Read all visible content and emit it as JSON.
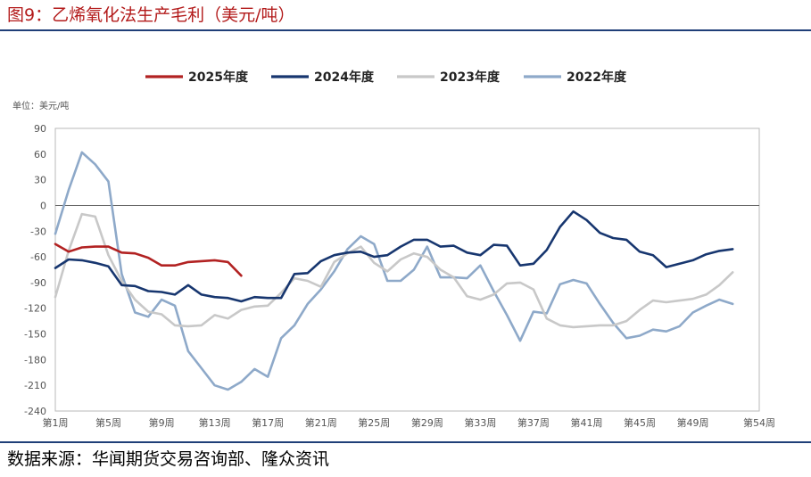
{
  "figure": {
    "title": "图9：乙烯氧化法生产毛利（美元/吨）",
    "source": "数据来源：华闻期货交易咨询部、隆众资讯"
  },
  "chart_data": {
    "type": "line",
    "unit_label": "单位：美元/吨",
    "ylim": [
      -240,
      90
    ],
    "y_ticks": [
      90,
      60,
      30,
      0,
      -30,
      -60,
      -90,
      -120,
      -150,
      -180,
      -210,
      -240
    ],
    "xlim": [
      1,
      54
    ],
    "x_ticks": [
      1,
      5,
      9,
      13,
      17,
      21,
      25,
      29,
      33,
      37,
      41,
      45,
      49,
      54
    ],
    "x_tick_labels": [
      "第1周",
      "第5周",
      "第9周",
      "第13周",
      "第17周",
      "第21周",
      "第25周",
      "第29周",
      "第33周",
      "第37周",
      "第41周",
      "第45周",
      "第49周",
      "第54周"
    ],
    "grid": false,
    "legend_position": "top",
    "series": [
      {
        "name": "2025年度",
        "color": "#b22222",
        "x": [
          1,
          2,
          3,
          4,
          5,
          6,
          7,
          8,
          9,
          10,
          11,
          12,
          13,
          14,
          15
        ],
        "y": [
          -45,
          -54,
          -49,
          -48,
          -48,
          -55,
          -56,
          -61,
          -70,
          -70,
          -66,
          -65,
          -64,
          -66,
          -82
        ]
      },
      {
        "name": "2024年度",
        "color": "#17366f",
        "x": [
          1,
          2,
          3,
          4,
          5,
          6,
          7,
          8,
          9,
          10,
          11,
          12,
          13,
          14,
          15,
          16,
          17,
          18,
          19,
          20,
          21,
          22,
          23,
          24,
          25,
          26,
          27,
          28,
          29,
          30,
          31,
          32,
          33,
          34,
          35,
          36,
          37,
          38,
          39,
          40,
          41,
          42,
          43,
          44,
          45,
          46,
          47,
          48,
          49,
          50,
          51,
          52
        ],
        "y": [
          -73,
          -63,
          -64,
          -67,
          -71,
          -93,
          -94,
          -100,
          -101,
          -104,
          -93,
          -104,
          -107,
          -108,
          -112,
          -107,
          -108,
          -108,
          -80,
          -79,
          -65,
          -58,
          -55,
          -54,
          -60,
          -58,
          -48,
          -40,
          -40,
          -48,
          -47,
          -55,
          -58,
          -46,
          -47,
          -70,
          -68,
          -52,
          -25,
          -7,
          -17,
          -32,
          -38,
          -40,
          -54,
          -58,
          -72,
          -68,
          -64,
          -57,
          -53,
          -51
        ]
      },
      {
        "name": "2023年度",
        "color": "#c8c8c8",
        "x": [
          1,
          2,
          3,
          4,
          5,
          6,
          7,
          8,
          9,
          10,
          11,
          12,
          13,
          14,
          15,
          16,
          17,
          18,
          19,
          20,
          21,
          22,
          23,
          24,
          25,
          26,
          27,
          28,
          29,
          30,
          31,
          32,
          33,
          34,
          35,
          36,
          37,
          38,
          39,
          40,
          41,
          42,
          43,
          44,
          45,
          46,
          47,
          48,
          49,
          50,
          51,
          52
        ],
        "y": [
          -107,
          -53,
          -10,
          -13,
          -58,
          -88,
          -110,
          -124,
          -127,
          -140,
          -141,
          -140,
          -128,
          -132,
          -122,
          -118,
          -117,
          -102,
          -85,
          -88,
          -95,
          -66,
          -56,
          -48,
          -67,
          -77,
          -63,
          -56,
          -60,
          -75,
          -84,
          -106,
          -110,
          -104,
          -91,
          -90,
          -98,
          -132,
          -140,
          -142,
          -141,
          -140,
          -140,
          -135,
          -122,
          -111,
          -113,
          -111,
          -109,
          -104,
          -93,
          -78
        ]
      },
      {
        "name": "2022年度",
        "color": "#8ea9c9",
        "x": [
          1,
          2,
          3,
          4,
          5,
          6,
          7,
          8,
          9,
          10,
          11,
          12,
          13,
          14,
          15,
          16,
          17,
          18,
          19,
          20,
          21,
          22,
          23,
          24,
          25,
          26,
          27,
          28,
          29,
          30,
          31,
          32,
          33,
          34,
          35,
          36,
          37,
          38,
          39,
          40,
          41,
          42,
          43,
          44,
          45,
          46,
          47,
          48,
          49,
          50,
          51,
          52
        ],
        "y": [
          -33,
          18,
          62,
          48,
          28,
          -80,
          -125,
          -130,
          -110,
          -117,
          -170,
          -190,
          -210,
          -215,
          -206,
          -191,
          -200,
          -155,
          -140,
          -115,
          -98,
          -77,
          -51,
          -36,
          -45,
          -88,
          -88,
          -75,
          -48,
          -84,
          -84,
          -85,
          -70,
          -100,
          -128,
          -158,
          -124,
          -126,
          -92,
          -87,
          -91,
          -115,
          -137,
          -155,
          -152,
          -145,
          -147,
          -141,
          -125,
          -117,
          -110,
          -115
        ]
      }
    ]
  }
}
